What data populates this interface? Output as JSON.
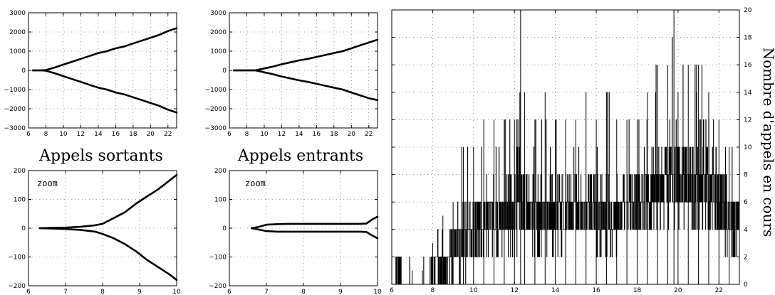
{
  "titles": {
    "left": "Appels sortants",
    "middle": "Appels entrants"
  },
  "zoom_label": "zoom",
  "right_ylabel": "Nombre d'appels en cours",
  "chart_data": [
    {
      "id": "sortants-full",
      "type": "line",
      "xlim": [
        6,
        23
      ],
      "ylim": [
        -3000,
        3000
      ],
      "xticks": [
        6,
        8,
        10,
        12,
        14,
        16,
        18,
        20,
        22
      ],
      "yticks": [
        -3000,
        -2000,
        -1000,
        0,
        1000,
        2000,
        3000
      ],
      "grid": true,
      "series": [
        {
          "x": [
            6.5,
            7.5,
            8,
            9,
            10,
            11,
            12,
            13,
            14,
            15,
            16,
            17,
            18,
            19,
            20,
            21,
            22,
            23
          ],
          "y": [
            0,
            0,
            20,
            150,
            300,
            450,
            600,
            750,
            900,
            1000,
            1150,
            1250,
            1400,
            1550,
            1700,
            1850,
            2050,
            2200
          ]
        },
        {
          "x": [
            6.5,
            7.5,
            8,
            9,
            10,
            11,
            12,
            13,
            14,
            15,
            16,
            17,
            18,
            19,
            20,
            21,
            22,
            23
          ],
          "y": [
            0,
            0,
            -20,
            -150,
            -300,
            -450,
            -600,
            -750,
            -900,
            -1000,
            -1150,
            -1250,
            -1400,
            -1550,
            -1700,
            -1850,
            -2050,
            -2200
          ]
        }
      ]
    },
    {
      "id": "entrants-full",
      "type": "line",
      "xlim": [
        6,
        23
      ],
      "ylim": [
        -3000,
        3000
      ],
      "xticks": [
        6,
        8,
        10,
        12,
        14,
        16,
        18,
        20,
        22
      ],
      "yticks": [
        -3000,
        -2000,
        -1000,
        0,
        1000,
        2000,
        3000
      ],
      "grid": true,
      "series": [
        {
          "x": [
            6.5,
            8,
            9,
            10,
            11,
            12,
            13,
            14,
            15,
            16,
            17,
            18,
            19,
            20,
            21,
            22,
            23
          ],
          "y": [
            0,
            0,
            0,
            100,
            200,
            320,
            420,
            520,
            600,
            700,
            800,
            900,
            1000,
            1150,
            1300,
            1450,
            1600
          ]
        },
        {
          "x": [
            6.5,
            8,
            9,
            10,
            11,
            12,
            13,
            14,
            15,
            16,
            17,
            18,
            19,
            20,
            21,
            22,
            23
          ],
          "y": [
            0,
            0,
            0,
            -100,
            -200,
            -320,
            -420,
            -520,
            -600,
            -700,
            -800,
            -900,
            -1000,
            -1150,
            -1300,
            -1450,
            -1550
          ]
        }
      ]
    },
    {
      "id": "sortants-zoom",
      "type": "line",
      "xlim": [
        6,
        10
      ],
      "ylim": [
        -200,
        200
      ],
      "xticks": [
        6,
        7,
        8,
        9,
        10
      ],
      "yticks": [
        -200,
        -100,
        0,
        100,
        200
      ],
      "grid": true,
      "series": [
        {
          "x": [
            6.3,
            6.6,
            7,
            7.4,
            7.8,
            8.0,
            8.3,
            8.6,
            8.9,
            9.2,
            9.5,
            9.8,
            10
          ],
          "y": [
            0,
            1,
            2,
            5,
            10,
            15,
            35,
            55,
            85,
            110,
            135,
            165,
            185
          ]
        },
        {
          "x": [
            6.3,
            6.6,
            7,
            7.4,
            7.8,
            8.0,
            8.3,
            8.6,
            8.9,
            9.2,
            9.5,
            9.8,
            10
          ],
          "y": [
            0,
            -1,
            -3,
            -6,
            -12,
            -20,
            -35,
            -55,
            -80,
            -110,
            -135,
            -160,
            -180
          ]
        }
      ]
    },
    {
      "id": "entrants-zoom",
      "type": "line",
      "xlim": [
        6,
        10
      ],
      "ylim": [
        -200,
        200
      ],
      "xticks": [
        6,
        7,
        8,
        9,
        10
      ],
      "yticks": [
        -200,
        -100,
        0,
        100,
        200
      ],
      "grid": true,
      "series": [
        {
          "x": [
            6.6,
            6.8,
            7,
            7.3,
            7.6,
            8,
            9,
            9.5,
            9.7,
            9.85,
            10
          ],
          "y": [
            0,
            5,
            12,
            14,
            15,
            15,
            15,
            15,
            16,
            30,
            40
          ]
        },
        {
          "x": [
            6.6,
            6.8,
            7,
            7.3,
            7.6,
            8,
            9,
            9.5,
            9.7,
            9.85,
            10
          ],
          "y": [
            0,
            -5,
            -10,
            -12,
            -12,
            -12,
            -12,
            -12,
            -13,
            -25,
            -35
          ]
        }
      ]
    },
    {
      "id": "appels-en-cours",
      "type": "line",
      "xlim": [
        6,
        23
      ],
      "ylim": [
        0,
        20
      ],
      "xticks": [
        6,
        8,
        10,
        12,
        14,
        16,
        18,
        20,
        22
      ],
      "yticks": [
        0,
        2,
        4,
        6,
        8,
        10,
        12,
        14,
        16,
        18,
        20
      ],
      "ylabel": "Nombre d'appels en cours",
      "grid": true,
      "envelope": {
        "x": [
          6.2,
          7,
          7.5,
          8,
          8.5,
          9,
          9.5,
          10,
          10.5,
          11,
          11.5,
          12,
          12.3,
          12.5,
          13,
          13.5,
          14,
          14.5,
          15,
          15.5,
          16,
          16.5,
          17,
          17.5,
          18,
          18.5,
          19,
          19.5,
          19.8,
          20,
          20.5,
          21,
          21.5,
          22,
          22.5,
          23
        ],
        "upper": [
          2,
          1,
          1,
          3,
          5,
          6,
          10,
          10,
          12,
          12,
          12,
          12,
          20,
          14,
          12,
          14,
          12,
          12,
          12,
          14,
          12,
          14,
          12,
          12,
          12,
          14,
          16,
          16,
          20,
          14,
          16,
          16,
          14,
          12,
          10,
          8
        ],
        "typical_high": [
          1,
          0,
          0,
          1,
          2,
          3,
          5,
          6,
          6,
          6,
          7,
          8,
          8,
          8,
          7,
          7,
          7,
          7,
          7,
          7,
          7,
          7,
          7,
          7,
          8,
          9,
          9,
          10,
          10,
          10,
          10,
          9,
          9,
          8,
          7,
          6
        ],
        "typical_low": [
          0,
          0,
          0,
          0,
          0,
          0,
          0,
          1,
          1,
          2,
          2,
          2,
          3,
          3,
          2,
          2,
          2,
          2,
          3,
          3,
          2,
          2,
          2,
          3,
          3,
          3,
          4,
          4,
          4,
          4,
          4,
          4,
          3,
          3,
          2,
          2
        ]
      }
    }
  ]
}
